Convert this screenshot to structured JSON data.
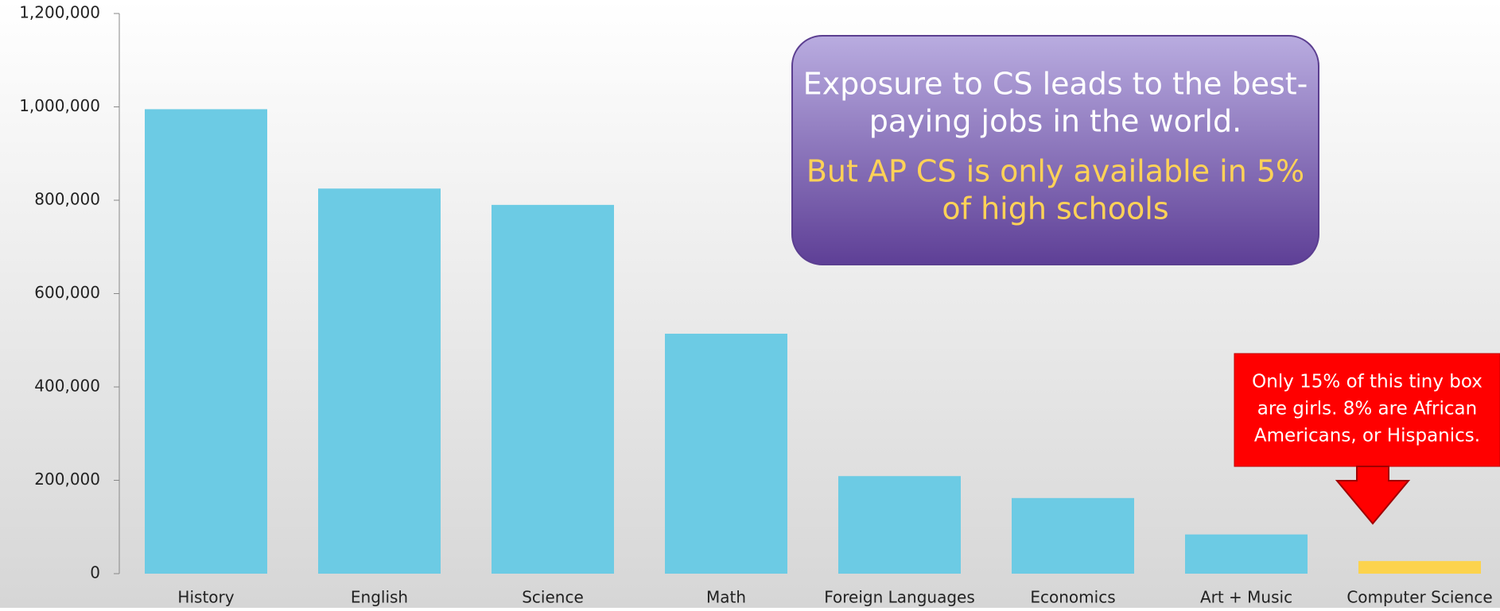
{
  "chart_data": {
    "type": "bar",
    "categories": [
      "History",
      "English",
      "Science",
      "Math",
      "Foreign Languages",
      "Economics",
      "Art + Music",
      "Computer Science"
    ],
    "values": [
      995000,
      825000,
      790000,
      514000,
      209000,
      162000,
      84000,
      27000
    ],
    "colors": [
      "#6ccbe4",
      "#6ccbe4",
      "#6ccbe4",
      "#6ccbe4",
      "#6ccbe4",
      "#6ccbe4",
      "#6ccbe4",
      "#fcd34d"
    ],
    "ylim": [
      0,
      1200000
    ],
    "yticks": [
      0,
      {
        "value": 200000,
        "label": "200,000"
      },
      {
        "value": 400000,
        "label": "400,000"
      },
      {
        "value": 600000,
        "label": "600,000"
      },
      {
        "value": 800000,
        "label": "800,000"
      },
      {
        "value": 1000000,
        "label": "1,000,000"
      },
      {
        "value": 1200000,
        "label": "1,200,000"
      }
    ],
    "grid": false,
    "annotations": [
      {
        "lines": [
          "Exposure to CS leads to the best-",
          "paying jobs in the world."
        ],
        "color": "#ffffff"
      },
      {
        "lines": [
          "But AP CS is only available in 5%",
          "of high schools"
        ],
        "color": "#ffd257"
      },
      {
        "lines": [
          "Only 15% of this tiny box",
          "are girls. 8% are African",
          "Americans, or Hispanics."
        ],
        "color": "#ffffff"
      }
    ]
  }
}
